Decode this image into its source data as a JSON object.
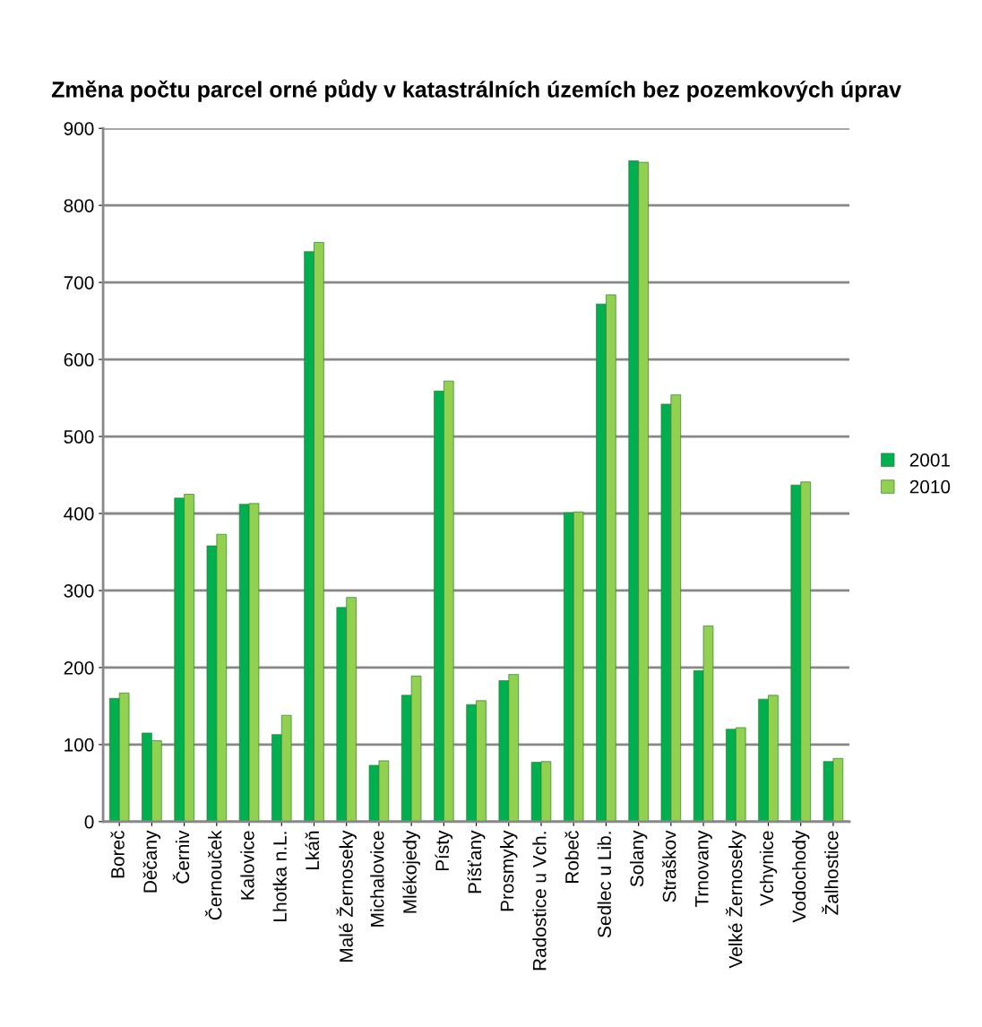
{
  "chart_data": {
    "type": "bar",
    "title": "Změna počtu parcel orné půdy v katastrálních územích bez pozemkových úprav",
    "categories": [
      "Boreč",
      "Děčany",
      "Černiv",
      "Černouček",
      "Kalovice",
      "Lhotka n.L.",
      "Lkáň",
      "Malé Žernoseky",
      "Michalovice",
      "Mlékojedy",
      "Písty",
      "Píšťany",
      "Prosmyky",
      "Radostice u Vch.",
      "Robeč",
      "Sedlec u Lib.",
      "Solany",
      "Straškov",
      "Trnovany",
      "Velké Žernoseky",
      "Vchynice",
      "Vodochody",
      "Žalhostice"
    ],
    "series": [
      {
        "name": "2001",
        "color": "#00b050",
        "values": [
          160,
          115,
          420,
          358,
          412,
          113,
          740,
          278,
          73,
          164,
          559,
          152,
          183,
          77,
          401,
          672,
          858,
          542,
          196,
          120,
          159,
          437,
          78
        ]
      },
      {
        "name": "2010",
        "color": "#92d050",
        "values": [
          167,
          105,
          425,
          373,
          413,
          138,
          752,
          291,
          79,
          189,
          572,
          157,
          191,
          78,
          402,
          684,
          856,
          554,
          254,
          122,
          164,
          441,
          82
        ]
      }
    ],
    "ylim": [
      0,
      900
    ],
    "yticks": [
      0,
      100,
      200,
      300,
      400,
      500,
      600,
      700,
      800,
      900
    ],
    "grid": "y",
    "legend": "right"
  }
}
